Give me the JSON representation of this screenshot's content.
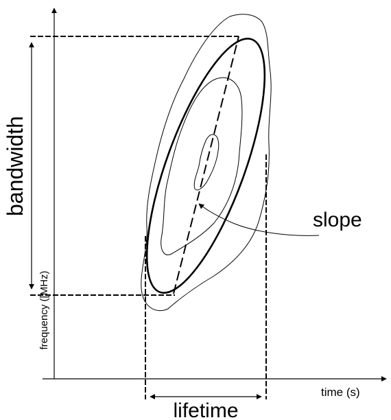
{
  "labels": {
    "bandwidth": "bandwidth",
    "frequency": "frequency ([MHz)",
    "slope": "slope",
    "lifetime": "lifetime",
    "time": "time (s)"
  },
  "colors": {
    "ink": "#000000",
    "background": "#ffffff"
  }
}
